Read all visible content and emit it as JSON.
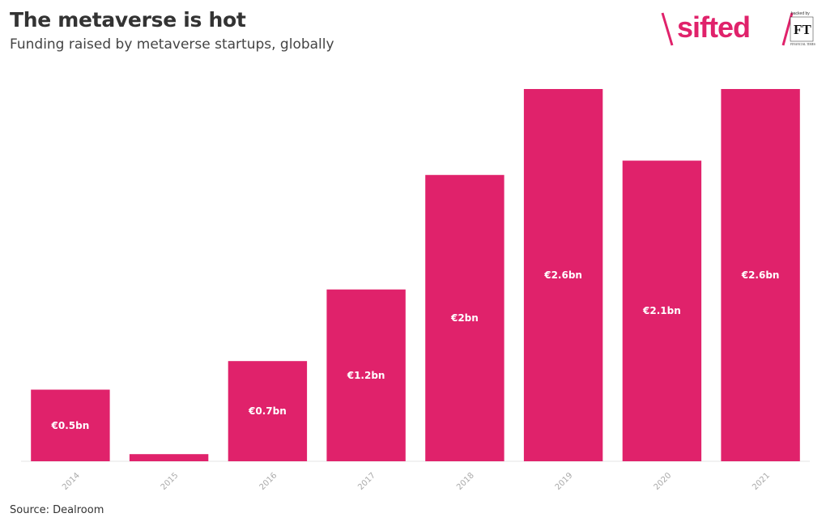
{
  "header": {
    "title": "The metaverse is hot",
    "subtitle": "Funding raised by metaverse startups, globally"
  },
  "logo": {
    "brand": "sifted",
    "backed_by": "backed by",
    "ft": "FT",
    "ft_name": "FINANCIAL TIMES"
  },
  "footer": {
    "source": "Source: Dealroom"
  },
  "colors": {
    "bar": "#e0226b",
    "axis": "#e6e6e6",
    "tick_text": "#aaaaaa"
  },
  "chart_data": {
    "type": "bar",
    "title": "The metaverse is hot",
    "subtitle": "Funding raised by metaverse startups, globally",
    "categories": [
      "2014",
      "2015",
      "2016",
      "2017",
      "2018",
      "2019",
      "2020",
      "2021"
    ],
    "values": [
      0.5,
      0.05,
      0.7,
      1.2,
      2.0,
      2.6,
      2.1,
      2.6
    ],
    "labels": [
      "€0.5bn",
      "",
      "€0.7bn",
      "€1.2bn",
      "€2bn",
      "€2.6bn",
      "€2.1bn",
      "€2.6bn"
    ],
    "xlabel": "",
    "ylabel": "",
    "ylim": [
      0,
      2.6
    ],
    "grid": false,
    "source": "Source: Dealroom"
  }
}
